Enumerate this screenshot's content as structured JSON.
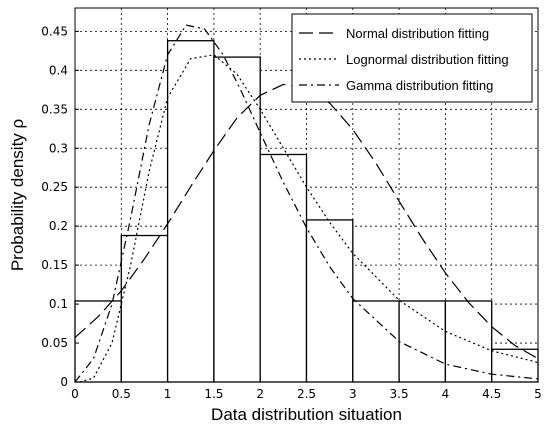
{
  "chart_data": {
    "type": "bar",
    "title": "",
    "xlabel": "Data distribution situation",
    "ylabel": "Probability density ρ",
    "xlim": [
      0,
      5
    ],
    "ylim": [
      0,
      0.48
    ],
    "grid": true,
    "legend_position": "top-right",
    "x_ticks": [
      "0",
      "0.5",
      "1",
      "1.5",
      "2",
      "2.5",
      "3",
      "3.5",
      "4",
      "4.5",
      "5"
    ],
    "y_ticks": [
      "0",
      "0.05",
      "0.1",
      "0.15",
      "0.2",
      "0.25",
      "0.3",
      "0.35",
      "0.4",
      "0.45"
    ],
    "histogram": {
      "bin_edges": [
        0,
        0.5,
        1.0,
        1.5,
        2.0,
        2.5,
        3.0,
        3.5,
        4.0,
        4.5,
        5.0
      ],
      "values": [
        0.104,
        0.188,
        0.438,
        0.417,
        0.292,
        0.208,
        0.104,
        0.104,
        0.104,
        0.042
      ]
    },
    "series": [
      {
        "name": "Normal distribution fitting",
        "type": "line",
        "style": "long-dash",
        "x": [
          0,
          0.25,
          0.5,
          0.75,
          1.0,
          1.25,
          1.5,
          1.75,
          2.0,
          2.25,
          2.5,
          2.75,
          3.0,
          3.25,
          3.5,
          3.75,
          4.0,
          4.25,
          4.5,
          4.75,
          5.0
        ],
        "y": [
          0.057,
          0.084,
          0.117,
          0.158,
          0.203,
          0.251,
          0.297,
          0.339,
          0.368,
          0.382,
          0.378,
          0.358,
          0.324,
          0.281,
          0.232,
          0.184,
          0.14,
          0.102,
          0.071,
          0.047,
          0.03
        ]
      },
      {
        "name": "Lognormal distribution fitting",
        "type": "line",
        "style": "dotted",
        "x": [
          0.05,
          0.2,
          0.4,
          0.6,
          0.8,
          1.0,
          1.25,
          1.5,
          1.75,
          2.0,
          2.25,
          2.5,
          2.75,
          3.0,
          3.5,
          4.0,
          4.5,
          5.0
        ],
        "y": [
          0.0,
          0.005,
          0.05,
          0.15,
          0.27,
          0.365,
          0.415,
          0.42,
          0.395,
          0.35,
          0.3,
          0.25,
          0.205,
          0.165,
          0.105,
          0.065,
          0.04,
          0.025
        ]
      },
      {
        "name": "Gamma distribution fitting",
        "type": "line",
        "style": "dash-dot",
        "x": [
          0.0,
          0.2,
          0.4,
          0.6,
          0.8,
          1.0,
          1.2,
          1.4,
          1.6,
          1.8,
          2.0,
          2.25,
          2.5,
          2.75,
          3.0,
          3.5,
          4.0,
          4.5,
          5.0
        ],
        "y": [
          0.0,
          0.03,
          0.1,
          0.21,
          0.33,
          0.42,
          0.458,
          0.453,
          0.42,
          0.372,
          0.32,
          0.256,
          0.198,
          0.148,
          0.107,
          0.052,
          0.023,
          0.01,
          0.004
        ]
      }
    ]
  }
}
